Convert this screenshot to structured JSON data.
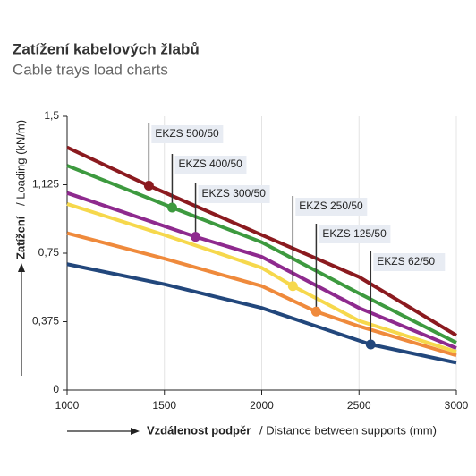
{
  "chart_data": {
    "type": "line",
    "title": "Zatížení kabelových žlabů",
    "subtitle": "Cable trays load charts",
    "ylabel": [
      "Zatížení",
      "/ Loading (kN/m)"
    ],
    "xlabel": [
      "Vzdálenost podpěr",
      "/ Distance between supports (mm)"
    ],
    "xlim": [
      1000,
      3000
    ],
    "xticks": [
      1000,
      1500,
      2000,
      2500,
      3000
    ],
    "ylim": [
      0,
      1.5
    ],
    "yticks": [
      0,
      {
        "value": 0.375,
        "label": "0,375"
      },
      {
        "value": 0.75,
        "label": "0,75"
      },
      {
        "value": 1.125,
        "label": "1,125"
      },
      {
        "value": 1.5,
        "label": "1,5"
      }
    ],
    "grid": true,
    "series": [
      {
        "name": "EKZS 500/50",
        "color": "#8b1a1f",
        "x": [
          1000,
          1420,
          2000,
          2500,
          3000
        ],
        "values": [
          1.33,
          1.12,
          0.85,
          0.62,
          0.3
        ],
        "marker": 1
      },
      {
        "name": "EKZS 400/50",
        "color": "#3d9a3f",
        "x": [
          1000,
          1540,
          2000,
          2500,
          3000
        ],
        "values": [
          1.23,
          1.0,
          0.81,
          0.53,
          0.26
        ],
        "marker": 1
      },
      {
        "name": "EKZS 300/50",
        "color": "#8e2a8e",
        "x": [
          1000,
          1660,
          2000,
          2500,
          3000
        ],
        "values": [
          1.08,
          0.84,
          0.73,
          0.45,
          0.23
        ],
        "marker": 1
      },
      {
        "name": "EKZS 250/50",
        "color": "#f6d84c",
        "x": [
          1000,
          1500,
          2000,
          2160,
          2500,
          3000
        ],
        "values": [
          1.02,
          0.85,
          0.67,
          0.57,
          0.38,
          0.21
        ],
        "marker": 3
      },
      {
        "name": "EKZS 125/50",
        "color": "#ef8a3c",
        "x": [
          1000,
          1500,
          2000,
          2280,
          2500,
          3000
        ],
        "values": [
          0.86,
          0.72,
          0.57,
          0.43,
          0.35,
          0.19
        ],
        "marker": 3
      },
      {
        "name": "EKZS 62/50",
        "color": "#22477c",
        "x": [
          1000,
          1500,
          2000,
          2560,
          3000
        ],
        "values": [
          0.69,
          0.58,
          0.45,
          0.25,
          0.15
        ],
        "marker": 3
      }
    ]
  }
}
